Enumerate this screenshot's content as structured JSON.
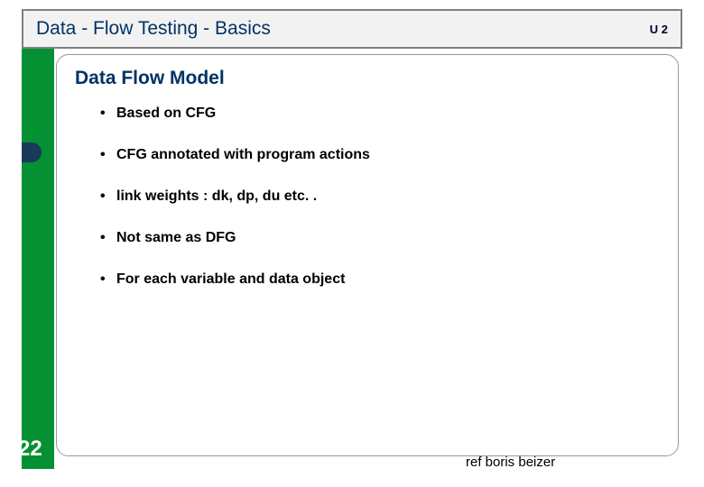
{
  "slide": {
    "title": "Data - Flow Testing   -  Basics",
    "unit_label": "U 2",
    "section_title": "Data Flow Model",
    "bullets": [
      "Based on CFG",
      "CFG annotated with program actions",
      "link weights :   dk, dp, du etc. .",
      "Not same as DFG",
      "For each variable and data object"
    ],
    "page_number": "22",
    "reference": "ref boris beizer"
  },
  "colors": {
    "title_text": "#003366",
    "title_bg": "#f2f2f2",
    "title_border": "#808080",
    "green_strip": "#059033",
    "card_bg": "#ffffff",
    "card_border": "#999999",
    "bullet_text": "#000000",
    "page_num": "#ffffff"
  },
  "layout": {
    "slide_width": 732,
    "slide_height": 510,
    "title_fontsize": 21,
    "section_fontsize": 21,
    "bullet_fontsize": 16,
    "pagenum_fontsize": 24
  }
}
